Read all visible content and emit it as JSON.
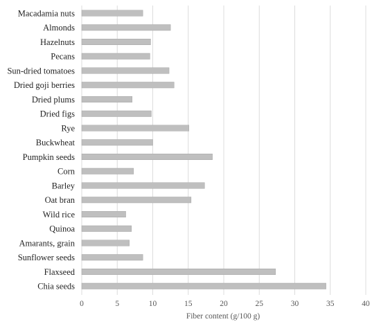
{
  "chart_data": {
    "type": "bar",
    "orientation": "horizontal",
    "title": "",
    "xlabel": "Fiber content (g/100 g)",
    "ylabel": "",
    "xlim": [
      0,
      40
    ],
    "xticks": [
      0,
      5,
      10,
      15,
      20,
      25,
      30,
      35,
      40
    ],
    "grid": "vertical",
    "legend": "none",
    "bar_color": "#bfbfbf",
    "bar_edge_color": "#a6a6a6",
    "grid_color": "#dcdcdc",
    "categories": [
      "Macadamia nuts",
      "Almonds",
      "Hazelnuts",
      "Pecans",
      "Sun-dried tomatoes",
      "Dried goji berries",
      "Dried plums",
      "Dried figs",
      "Rye",
      "Buckwheat",
      "Pumpkin seeds",
      "Corn",
      "Barley",
      "Oat bran",
      "Wild rice",
      "Quinoa",
      "Amarants, grain",
      "Sunflower seeds",
      "Flaxseed",
      "Chia seeds"
    ],
    "values": [
      8.6,
      12.5,
      9.7,
      9.6,
      12.3,
      13.0,
      7.1,
      9.8,
      15.1,
      10.0,
      18.4,
      7.3,
      17.3,
      15.4,
      6.2,
      7.0,
      6.7,
      8.6,
      27.3,
      34.4
    ]
  }
}
